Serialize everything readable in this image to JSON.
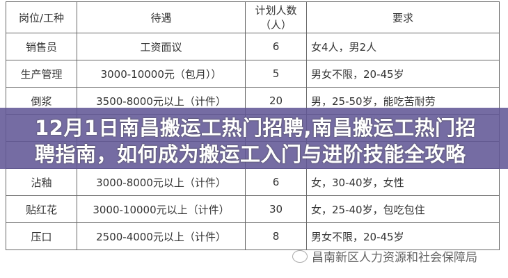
{
  "table": {
    "headers": [
      "岗位/工种",
      "待遇",
      "计划人数（人）",
      "要求"
    ],
    "rows": [
      [
        "销售员",
        "工资面议",
        "6",
        "女4人，男2人"
      ],
      [
        "生产管理",
        "3000-10000元（包月））",
        "5",
        "男女不限，20-45岁"
      ],
      [
        "倒浆",
        "3500-8000元以上（计件）",
        "20",
        "男，25-50岁，能吃苦耐劳"
      ],
      [
        "",
        "",
        "",
        ""
      ],
      [
        "",
        "",
        "",
        ""
      ],
      [
        "沾釉",
        "3000-8000元以上（计件）",
        "6",
        "女，30-40岁，女性"
      ],
      [
        "贴红花",
        "3000-10000元以上（计件）",
        "30",
        "女，25-40岁，包吃包住"
      ],
      [
        "压口",
        "2500-4000元以上（计件）",
        "8",
        "男女不限，20-45岁"
      ]
    ]
  },
  "overlay": {
    "title": "12月1日南昌搬运工热门招聘,南昌搬运工热门招聘指南，如何成为搬运工入门与进阶技能全攻略",
    "color": "#6e67a3"
  },
  "watermark": {
    "text": "昌南新区人力资源和社会保障局",
    "icon": "wechat-icon"
  }
}
